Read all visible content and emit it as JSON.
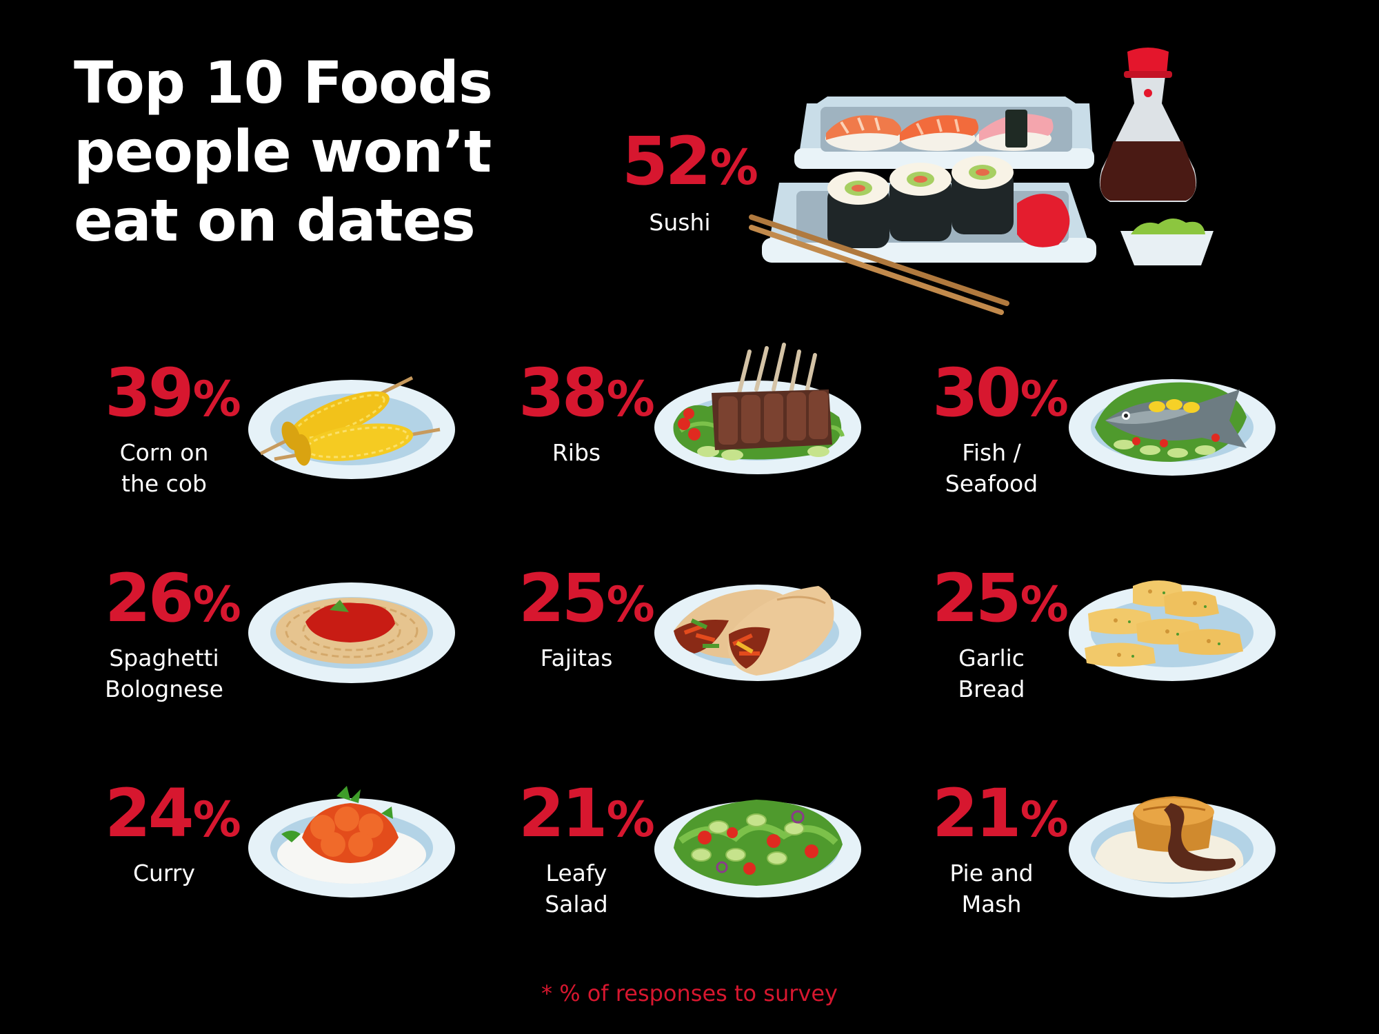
{
  "title_lines": [
    "Top 10 Foods",
    "people won’t",
    "eat on dates"
  ],
  "percent_symbol": "%",
  "footnote": "* % of responses to survey",
  "colors": {
    "background": "#000000",
    "accent": "#d7172f",
    "text": "#ffffff"
  },
  "chart_data": {
    "type": "table",
    "title": "Top 10 Foods people won’t eat on dates",
    "unit": "%",
    "items": [
      {
        "name_lines": [
          "Sushi"
        ],
        "value": 52,
        "icon": "sushi-icon"
      },
      {
        "name_lines": [
          "Corn on",
          "the cob"
        ],
        "value": 39,
        "icon": "corn-icon"
      },
      {
        "name_lines": [
          "Ribs"
        ],
        "value": 38,
        "icon": "ribs-icon"
      },
      {
        "name_lines": [
          "Fish /",
          "Seafood"
        ],
        "value": 30,
        "icon": "fish-icon"
      },
      {
        "name_lines": [
          "Spaghetti",
          "Bolognese"
        ],
        "value": 26,
        "icon": "spaghetti-icon"
      },
      {
        "name_lines": [
          "Fajitas"
        ],
        "value": 25,
        "icon": "fajitas-icon"
      },
      {
        "name_lines": [
          "Garlic",
          "Bread"
        ],
        "value": 25,
        "icon": "garlic-bread-icon"
      },
      {
        "name_lines": [
          "Curry"
        ],
        "value": 24,
        "icon": "curry-icon"
      },
      {
        "name_lines": [
          "Leafy",
          "Salad"
        ],
        "value": 21,
        "icon": "salad-icon"
      },
      {
        "name_lines": [
          "Pie and",
          "Mash"
        ],
        "value": 21,
        "icon": "pie-mash-icon"
      }
    ]
  }
}
